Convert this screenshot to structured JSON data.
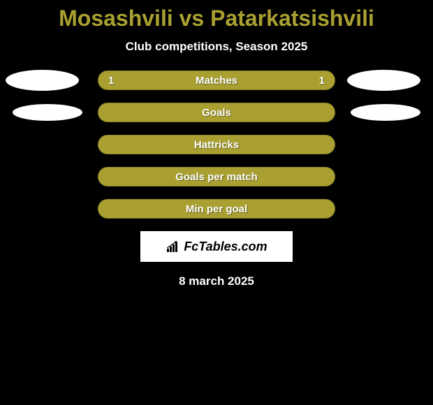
{
  "title": "Mosashvili vs Patarkatsishvili",
  "subtitle": "Club competitions, Season 2025",
  "date": "8 march 2025",
  "colors": {
    "bar_fill": "#a9a031",
    "bar_border": "#8a8228",
    "title_color": "#a9a031",
    "oval_white": "#ffffff",
    "background": "#000000",
    "text_white": "#ffffff"
  },
  "stats": [
    {
      "label": "Matches",
      "left_value": "1",
      "right_value": "1",
      "show_left_oval": true,
      "show_right_oval": true,
      "oval_size": "big"
    },
    {
      "label": "Goals",
      "left_value": "",
      "right_value": "",
      "show_left_oval": true,
      "show_right_oval": true,
      "oval_size": "medium"
    },
    {
      "label": "Hattricks",
      "left_value": "",
      "right_value": "",
      "show_left_oval": false,
      "show_right_oval": false
    },
    {
      "label": "Goals per match",
      "left_value": "",
      "right_value": "",
      "show_left_oval": false,
      "show_right_oval": false
    },
    {
      "label": "Min per goal",
      "left_value": "",
      "right_value": "",
      "show_left_oval": false,
      "show_right_oval": false
    }
  ],
  "logo": {
    "text": "FcTables.com"
  }
}
